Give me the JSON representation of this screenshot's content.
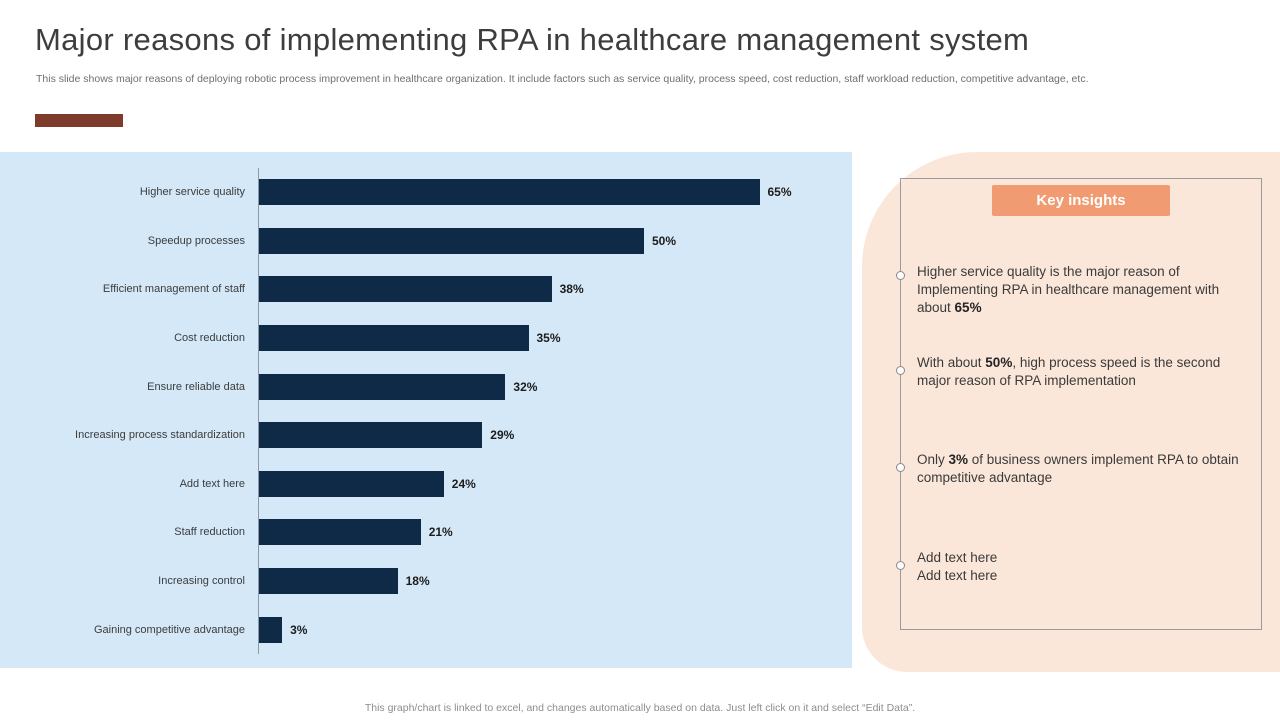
{
  "slide": {
    "title": "Major reasons of implementing RPA in healthcare management system",
    "subtitle": "This slide shows major reasons of deploying robotic process improvement in healthcare organization. It include factors such as service quality, process speed, cost reduction, staff workload reduction, competitive advantage, etc.",
    "footer": "This graph/chart is linked to excel, and changes automatically based on data. Just left click on it and select “Edit Data”."
  },
  "chart_data": {
    "type": "bar",
    "orientation": "horizontal",
    "title": "",
    "categories": [
      "Higher service quality",
      "Speedup processes",
      "Efficient management of staff",
      "Cost reduction",
      "Ensure reliable data",
      "Increasing process standardization",
      "Add text here",
      "Staff reduction",
      "Increasing control",
      "Gaining competitive advantage"
    ],
    "values": [
      65,
      50,
      38,
      35,
      32,
      29,
      24,
      21,
      18,
      3
    ],
    "value_labels": [
      "65%",
      "50%",
      "38%",
      "35%",
      "32%",
      "29%",
      "24%",
      "21%",
      "18%",
      "3%"
    ],
    "xlim": [
      0,
      70
    ],
    "grid": false,
    "legend": false
  },
  "insights": {
    "header": "Key insights",
    "items": [
      {
        "pre": "Higher service quality is the major reason of Implementing RPA in healthcare management with about ",
        "bold": "65%",
        "post": ""
      },
      {
        "pre": "With about ",
        "bold": "50%",
        "post": ", high process speed is the second major reason of RPA implementation"
      },
      {
        "pre": "Only ",
        "bold": "3%",
        "post": " of business owners implement RPA to obtain competitive advantage"
      },
      {
        "line1": "Add text here",
        "line2": "Add text here"
      }
    ]
  },
  "colors": {
    "bar": "#0E2A47",
    "chart_bg": "#D4E8F8",
    "panel_bg": "#FBE7DA",
    "badge_bg": "#F09B72",
    "accent": "#7E3A2B",
    "axis": "#8D9AA6"
  }
}
